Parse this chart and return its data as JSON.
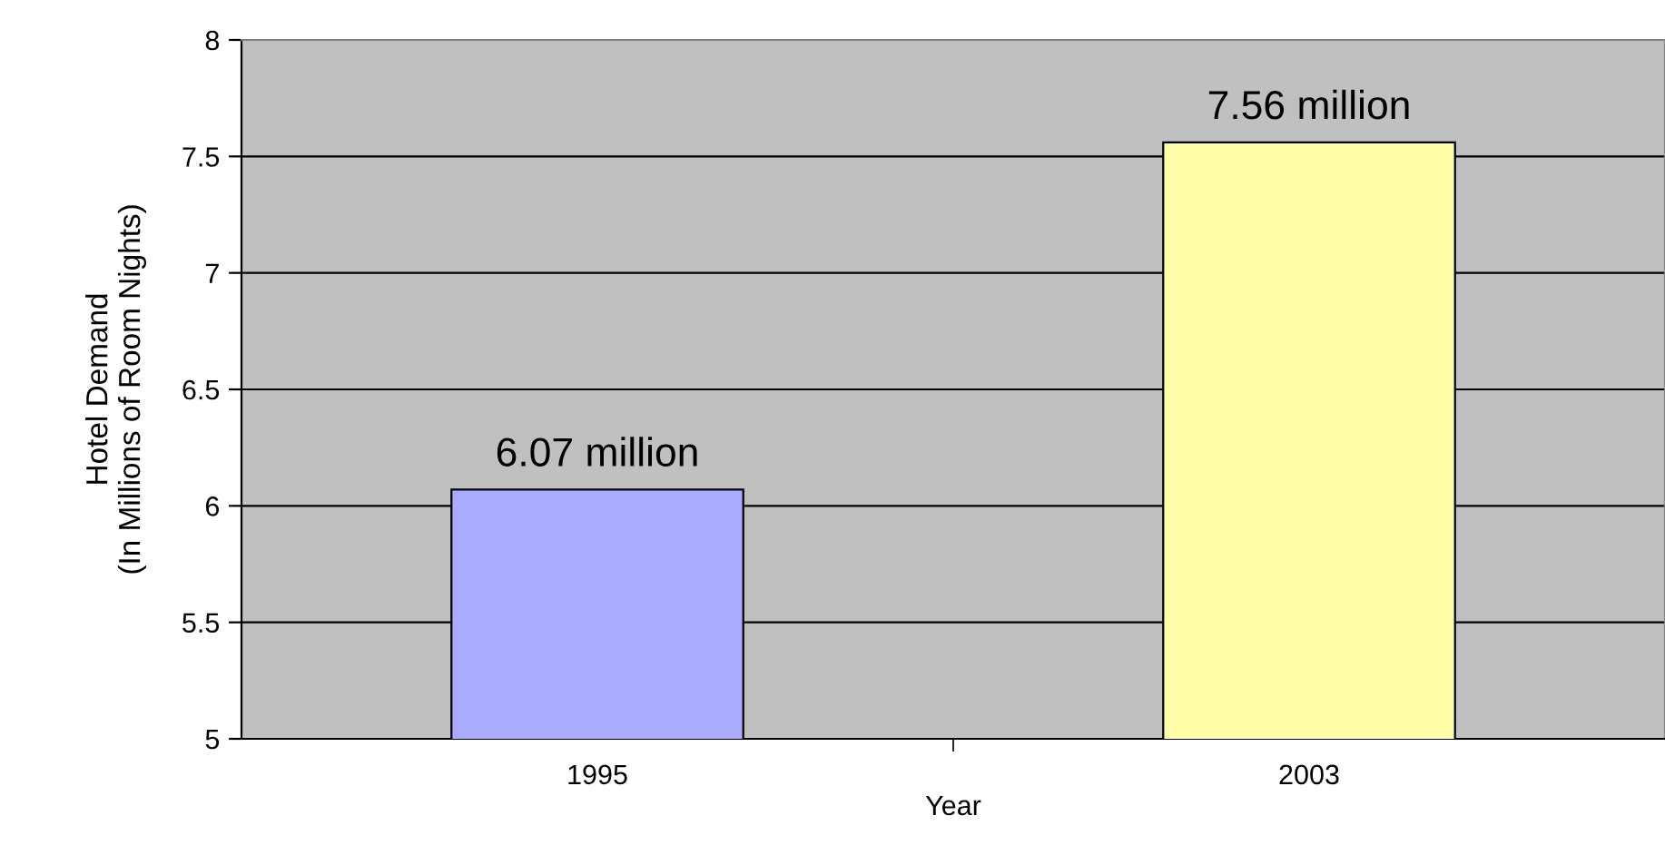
{
  "chart_data": {
    "type": "bar",
    "xlabel": "Year",
    "ylabel": "Hotel Demand\n(In Millions of Room Nights)",
    "categories": [
      "1995",
      "2003"
    ],
    "values": [
      6.07,
      7.56
    ],
    "colors": [
      "#aaaaff",
      "#ffffaa"
    ],
    "value_labels": [
      "6.07 million",
      "7.56 million"
    ],
    "ylim": [
      5,
      8
    ],
    "yticks": [
      5,
      5.5,
      6,
      6.5,
      7,
      7.5,
      8
    ],
    "grid": "y",
    "legend": false
  }
}
